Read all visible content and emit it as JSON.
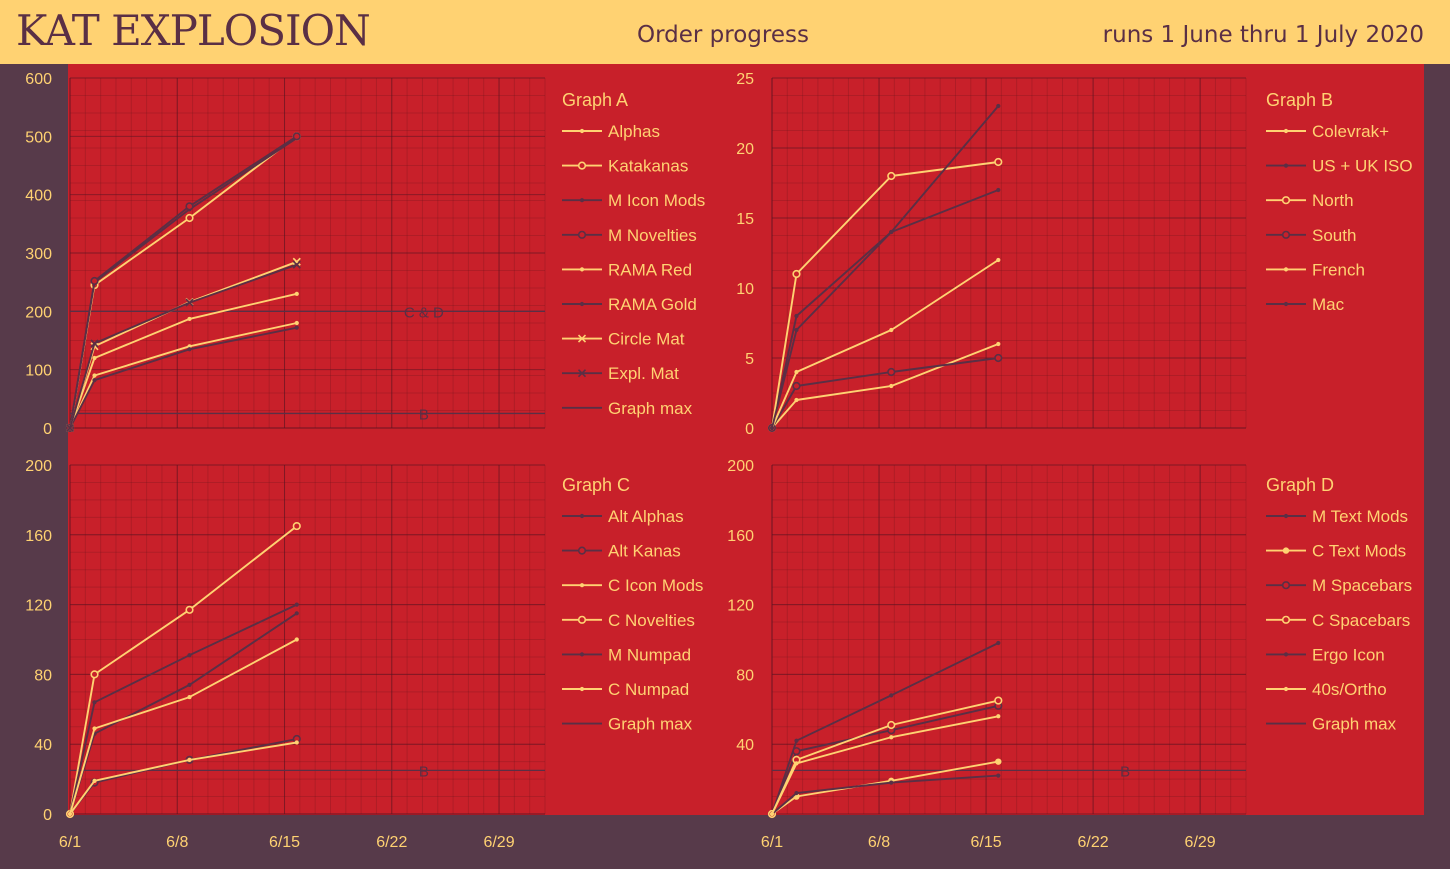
{
  "header": {
    "brand": "KAT EXPLOSION",
    "subtitle": "Order progress",
    "dates": "runs 1 June thru 1 July 2020"
  },
  "colors": {
    "yellow": "#ffd272",
    "plum": "#5a2f45",
    "red": "#c8202a",
    "background": "#573a4a"
  },
  "chart_data": [
    {
      "type": "line",
      "title": "Graph A",
      "x_tick_labels": [
        "6/1",
        "6/8",
        "6/15",
        "6/22",
        "6/29"
      ],
      "x_ticks": [
        1,
        8,
        15,
        22,
        29
      ],
      "xlim": [
        1,
        32
      ],
      "ylim": [
        0,
        600
      ],
      "y_ticks": [
        0,
        100,
        200,
        300,
        400,
        500,
        600
      ],
      "grid": true,
      "legend": "right",
      "series": [
        {
          "name": "Alphas",
          "color": "#ffd272",
          "marker": "dot",
          "x": [
            1,
            2.6,
            8.8,
            15.8
          ],
          "y": [
            0,
            90,
            140,
            180
          ]
        },
        {
          "name": "Katakanas",
          "color": "#ffd272",
          "marker": "circle",
          "x": [
            1,
            2.6,
            8.8,
            15.8
          ],
          "y": [
            0,
            245,
            360,
            500
          ]
        },
        {
          "name": "M Icon Mods",
          "color": "#5a2f45",
          "marker": "dot",
          "x": [
            1,
            2.6,
            8.8,
            15.8
          ],
          "y": [
            0,
            250,
            375,
            497
          ]
        },
        {
          "name": "M Novelties",
          "color": "#5a2f45",
          "marker": "circle",
          "x": [
            1,
            2.6,
            8.8,
            15.8
          ],
          "y": [
            0,
            252,
            380,
            500
          ]
        },
        {
          "name": "RAMA Red",
          "color": "#ffd272",
          "marker": "dot",
          "x": [
            1,
            2.6,
            8.8,
            15.8
          ],
          "y": [
            0,
            120,
            187,
            230
          ]
        },
        {
          "name": "RAMA Gold",
          "color": "#5a2f45",
          "marker": "dot",
          "x": [
            1,
            2.6,
            8.8,
            15.8
          ],
          "y": [
            0,
            82,
            135,
            172
          ]
        },
        {
          "name": "Circle Mat",
          "color": "#ffd272",
          "marker": "x",
          "x": [
            1,
            2.6,
            8.8,
            15.8
          ],
          "y": [
            0,
            140,
            216,
            285
          ]
        },
        {
          "name": "Expl. Mat",
          "color": "#5a2f45",
          "marker": "x",
          "x": [
            1,
            2.6,
            8.8,
            15.8
          ],
          "y": [
            0,
            145,
            215,
            280
          ]
        }
      ],
      "reference_lines": [
        {
          "name": "Graph max",
          "label": "C & D",
          "y": 200
        },
        {
          "name": "Graph max",
          "label": "B",
          "y": 25
        }
      ]
    },
    {
      "type": "line",
      "title": "Graph B",
      "x_tick_labels": [
        "6/1",
        "6/8",
        "6/15",
        "6/22",
        "6/29"
      ],
      "x_ticks": [
        1,
        8,
        15,
        22,
        29
      ],
      "xlim": [
        1,
        32
      ],
      "ylim": [
        0,
        25
      ],
      "y_ticks": [
        0,
        5,
        10,
        15,
        20,
        25
      ],
      "grid": true,
      "legend": "right",
      "series": [
        {
          "name": "Colevrak+",
          "color": "#ffd272",
          "marker": "dot",
          "x": [
            1,
            2.6,
            8.8,
            15.8
          ],
          "y": [
            0,
            2,
            3,
            6
          ]
        },
        {
          "name": "US + UK ISO",
          "color": "#5a2f45",
          "marker": "dot",
          "x": [
            1,
            2.6,
            8.8,
            15.8
          ],
          "y": [
            0,
            8,
            14,
            17
          ]
        },
        {
          "name": "North",
          "color": "#ffd272",
          "marker": "circle",
          "x": [
            1,
            2.6,
            8.8,
            15.8
          ],
          "y": [
            0,
            11,
            18,
            19
          ]
        },
        {
          "name": "South",
          "color": "#5a2f45",
          "marker": "circle",
          "x": [
            1,
            2.6,
            8.8,
            15.8
          ],
          "y": [
            0,
            3,
            4,
            5
          ]
        },
        {
          "name": "French",
          "color": "#ffd272",
          "marker": "dot",
          "x": [
            1,
            2.6,
            8.8,
            15.8
          ],
          "y": [
            0,
            4,
            7,
            12
          ]
        },
        {
          "name": "Mac",
          "color": "#5a2f45",
          "marker": "dot",
          "x": [
            1,
            2.6,
            8.8,
            15.8
          ],
          "y": [
            0,
            7,
            14,
            23
          ]
        }
      ]
    },
    {
      "type": "line",
      "title": "Graph C",
      "x_tick_labels": [
        "6/1",
        "6/8",
        "6/15",
        "6/22",
        "6/29"
      ],
      "x_ticks": [
        1,
        8,
        15,
        22,
        29
      ],
      "xlim": [
        1,
        32
      ],
      "ylim": [
        0,
        200
      ],
      "y_ticks": [
        0,
        40,
        80,
        120,
        160,
        200
      ],
      "grid": true,
      "legend": "right",
      "series": [
        {
          "name": "Alt Alphas",
          "color": "#5a2f45",
          "marker": "dot",
          "x": [
            1,
            2.6,
            8.8,
            15.8
          ],
          "y": [
            0,
            46,
            74,
            115
          ]
        },
        {
          "name": "Alt Kanas",
          "color": "#5a2f45",
          "marker": "circle",
          "x": [
            1,
            2.6,
            8.8,
            15.8
          ],
          "y": [
            0,
            18,
            31,
            43
          ]
        },
        {
          "name": "C Icon Mods",
          "color": "#ffd272",
          "marker": "dot",
          "x": [
            1,
            2.6,
            8.8,
            15.8
          ],
          "y": [
            0,
            19,
            31,
            41
          ]
        },
        {
          "name": "C Novelties",
          "color": "#ffd272",
          "marker": "circle",
          "x": [
            1,
            2.6,
            8.8,
            15.8
          ],
          "y": [
            0,
            80,
            117,
            165
          ]
        },
        {
          "name": "M Numpad",
          "color": "#5a2f45",
          "marker": "dot",
          "x": [
            1,
            2.6,
            8.8,
            15.8
          ],
          "y": [
            0,
            64,
            91,
            120
          ]
        },
        {
          "name": "C Numpad",
          "color": "#ffd272",
          "marker": "dot",
          "x": [
            1,
            2.6,
            8.8,
            15.8
          ],
          "y": [
            0,
            49,
            67,
            100
          ]
        }
      ],
      "reference_lines": [
        {
          "name": "Graph max",
          "label": "B",
          "y": 25
        }
      ]
    },
    {
      "type": "line",
      "title": "Graph D",
      "x_tick_labels": [
        "6/1",
        "6/8",
        "6/15",
        "6/22",
        "6/29"
      ],
      "x_ticks": [
        1,
        8,
        15,
        22,
        29
      ],
      "xlim": [
        1,
        32
      ],
      "ylim": [
        0,
        200
      ],
      "y_ticks": [
        40,
        80,
        120,
        160,
        200
      ],
      "grid": true,
      "legend": "right",
      "series": [
        {
          "name": "M Text Mods",
          "color": "#5a2f45",
          "marker": "dot",
          "x": [
            1,
            2.6,
            8.8,
            15.8
          ],
          "y": [
            0,
            42,
            68,
            98
          ]
        },
        {
          "name": "C Text Mods",
          "color": "#ffd272",
          "marker": "bigdot",
          "x": [
            1,
            2.6,
            8.8,
            15.8
          ],
          "y": [
            0,
            10,
            19,
            30
          ]
        },
        {
          "name": "M Spacebars",
          "color": "#5a2f45",
          "marker": "circle",
          "x": [
            1,
            2.6,
            8.8,
            15.8
          ],
          "y": [
            0,
            36,
            48,
            62
          ]
        },
        {
          "name": "C Spacebars",
          "color": "#ffd272",
          "marker": "circle",
          "x": [
            1,
            2.6,
            8.8,
            15.8
          ],
          "y": [
            0,
            31,
            51,
            65
          ]
        },
        {
          "name": "Ergo Icon",
          "color": "#5a2f45",
          "marker": "dot",
          "x": [
            1,
            2.6,
            8.8,
            15.8
          ],
          "y": [
            0,
            12,
            18,
            22
          ]
        },
        {
          "name": "40s/Ortho",
          "color": "#ffd272",
          "marker": "dot",
          "x": [
            1,
            2.6,
            8.8,
            15.8
          ],
          "y": [
            0,
            29,
            44,
            56
          ]
        }
      ],
      "reference_lines": [
        {
          "name": "Graph max",
          "label": "B",
          "y": 25
        }
      ]
    }
  ]
}
